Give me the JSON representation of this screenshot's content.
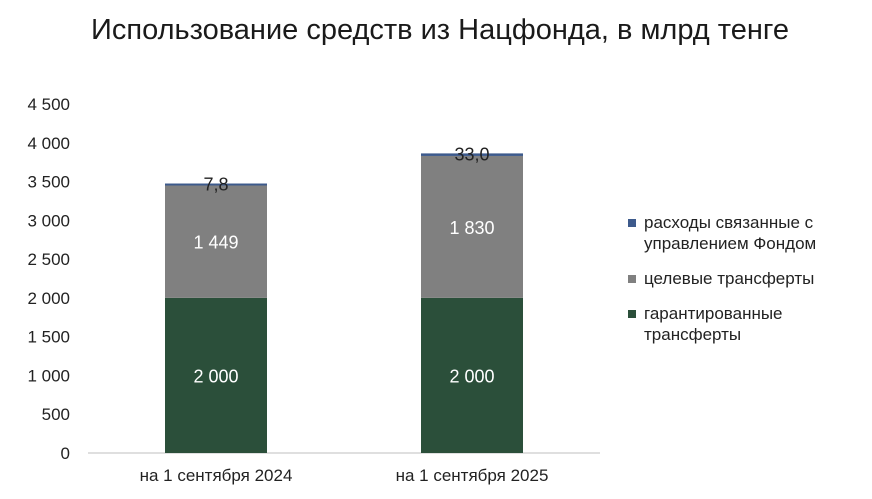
{
  "chart_data": {
    "type": "bar",
    "stacked": true,
    "title": "Использование средств из Нацфонда, в млрд тенге",
    "xlabel": "",
    "ylabel": "",
    "ylim": [
      0,
      4500
    ],
    "y_ticks": [
      0,
      500,
      1000,
      1500,
      2000,
      2500,
      3000,
      3500,
      4000,
      4500
    ],
    "y_tick_labels": [
      "0",
      "500",
      "1 000",
      "1 500",
      "2 000",
      "2 500",
      "3 000",
      "3 500",
      "4 000",
      "4 500"
    ],
    "grid": false,
    "legend_position": "right",
    "categories": [
      "на 1 сентября 2024",
      "на 1 сентября 2025"
    ],
    "series": [
      {
        "name": "гарантированные трансферты",
        "values": [
          2000,
          2000
        ],
        "labels": [
          "2 000",
          "2 000"
        ],
        "color": "#2b4f3a",
        "label_color": "#ffffff"
      },
      {
        "name": "целевые трансферты",
        "values": [
          1449,
          1830
        ],
        "labels": [
          "1 449",
          "1 830"
        ],
        "color": "#808080",
        "label_color": "#ffffff"
      },
      {
        "name": "расходы связанные с управлением Фондом",
        "values": [
          7.8,
          33.0
        ],
        "labels": [
          "7,8",
          "33,0"
        ],
        "color": "#3d5a8c",
        "label_color": "#222222"
      }
    ]
  }
}
